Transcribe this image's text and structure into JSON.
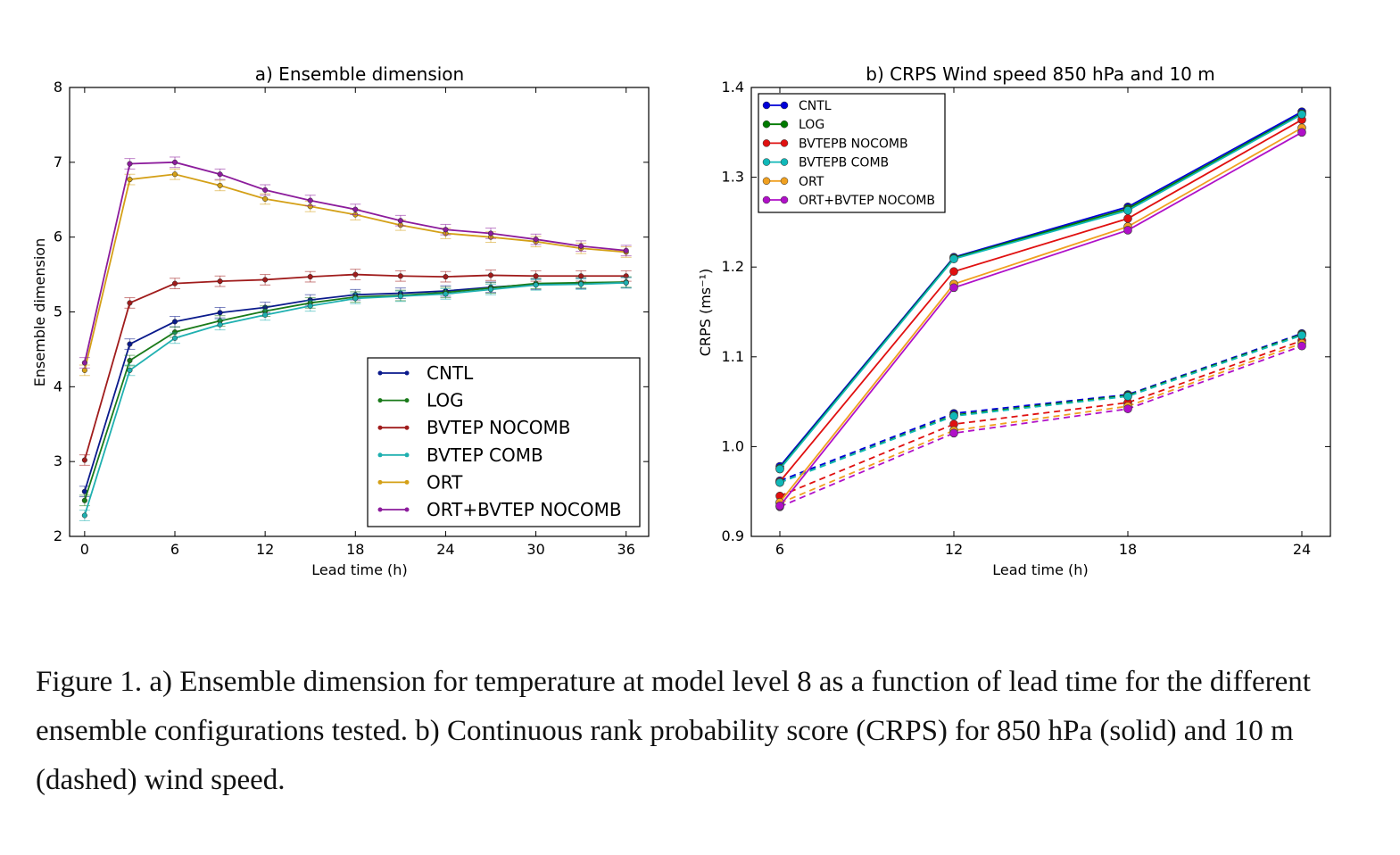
{
  "caption": "Figure 1. a) Ensemble dimension for temperature at model level 8 as a function of lead time for the different ensemble configurations tested. b) Continuous rank probability score (CRPS) for 850 hPa (solid) and 10 m (dashed) wind speed.",
  "chart_data": [
    {
      "type": "line",
      "title": "a) Ensemble dimension",
      "xlabel": "Lead time (h)",
      "ylabel": "Ensemble dimension",
      "xlim": [
        -1,
        37.5
      ],
      "ylim": [
        2,
        8
      ],
      "xticks": [
        0,
        6,
        12,
        18,
        24,
        30,
        36
      ],
      "yticks": [
        2,
        3,
        4,
        5,
        6,
        7,
        8
      ],
      "grid": false,
      "legend_position": "lower-right",
      "error_bars": true,
      "x": [
        0,
        3,
        6,
        9,
        12,
        15,
        18,
        21,
        24,
        27,
        30,
        33,
        36
      ],
      "series": [
        {
          "name": "CNTL",
          "color": "#0a1a8c",
          "values": [
            2.6,
            4.57,
            4.87,
            4.99,
            5.06,
            5.16,
            5.23,
            5.25,
            5.28,
            5.33,
            5.37,
            5.38,
            5.39
          ]
        },
        {
          "name": "LOG",
          "color": "#1a7a1a",
          "values": [
            2.48,
            4.35,
            4.73,
            4.88,
            5.01,
            5.12,
            5.2,
            5.22,
            5.26,
            5.32,
            5.38,
            5.39,
            5.4
          ]
        },
        {
          "name": "BVTEP NOCOMB",
          "color": "#a01c1c",
          "values": [
            3.02,
            5.12,
            5.38,
            5.41,
            5.43,
            5.47,
            5.5,
            5.48,
            5.47,
            5.49,
            5.48,
            5.48,
            5.48
          ]
        },
        {
          "name": "BVTEP COMB",
          "color": "#1fb0b0",
          "values": [
            2.28,
            4.22,
            4.65,
            4.83,
            4.96,
            5.08,
            5.18,
            5.21,
            5.24,
            5.3,
            5.36,
            5.37,
            5.39
          ]
        },
        {
          "name": "ORT",
          "color": "#d4a017",
          "values": [
            4.22,
            6.77,
            6.84,
            6.69,
            6.51,
            6.41,
            6.3,
            6.16,
            6.05,
            6.0,
            5.94,
            5.85,
            5.8
          ]
        },
        {
          "name": "ORT+BVTEP NOCOMB",
          "color": "#8c1c9c",
          "values": [
            4.32,
            6.98,
            7.0,
            6.84,
            6.63,
            6.49,
            6.37,
            6.22,
            6.1,
            6.05,
            5.97,
            5.88,
            5.82
          ]
        }
      ],
      "error_halfwidth": 0.07
    },
    {
      "type": "line",
      "title": "b) CRPS Wind speed 850 hPa and 10 m",
      "xlabel": "Lead time (h)",
      "ylabel": "CRPS (ms⁻¹)",
      "xlim": [
        6,
        24
      ],
      "ylim": [
        0.9,
        1.4
      ],
      "xticks": [
        6,
        12,
        18,
        24
      ],
      "yticks": [
        "0.9",
        "1.0",
        "1.1",
        "1.2",
        "1.3",
        "1.4"
      ],
      "grid": false,
      "legend_position": "top-left",
      "x": [
        6,
        12,
        18,
        24
      ],
      "series": [
        {
          "name": "CNTL",
          "color": "#0000d8",
          "solid_850hPa": [
            0.978,
            1.211,
            1.267,
            1.373
          ],
          "dashed_10m": [
            0.962,
            1.037,
            1.058,
            1.126
          ]
        },
        {
          "name": "LOG",
          "color": "#007a00",
          "solid_850hPa": [
            0.976,
            1.21,
            1.265,
            1.371
          ],
          "dashed_10m": [
            0.96,
            1.035,
            1.057,
            1.125
          ]
        },
        {
          "name": "BVTEPB NOCOMB",
          "color": "#e01010",
          "solid_850hPa": [
            0.961,
            1.195,
            1.254,
            1.364
          ],
          "dashed_10m": [
            0.945,
            1.025,
            1.049,
            1.118
          ]
        },
        {
          "name": "BVTEPB COMB",
          "color": "#10b8b8",
          "solid_850hPa": [
            0.975,
            1.209,
            1.263,
            1.37
          ],
          "dashed_10m": [
            0.96,
            1.034,
            1.056,
            1.124
          ]
        },
        {
          "name": "ORT",
          "color": "#f0a020",
          "solid_850hPa": [
            0.938,
            1.181,
            1.245,
            1.355
          ],
          "dashed_10m": [
            0.937,
            1.018,
            1.045,
            1.115
          ]
        },
        {
          "name": "ORT+BVTEP NOCOMB",
          "color": "#b010c8",
          "solid_850hPa": [
            0.934,
            1.177,
            1.241,
            1.35
          ],
          "dashed_10m": [
            0.933,
            1.015,
            1.042,
            1.112
          ]
        }
      ]
    }
  ]
}
